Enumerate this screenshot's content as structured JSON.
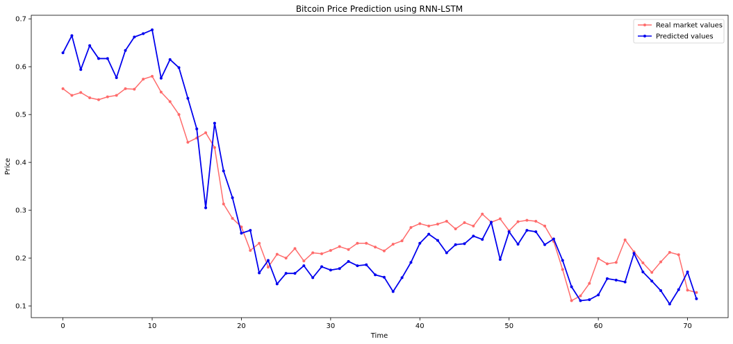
{
  "chart_data": {
    "type": "line",
    "title": "Bitcoin Price Prediction using RNN-LSTM",
    "xlabel": "Time",
    "ylabel": "Price",
    "xlim": [
      -3.55,
      74.55
    ],
    "ylim": [
      0.0755,
      0.7075
    ],
    "xticks": [
      0,
      10,
      20,
      30,
      40,
      50,
      60,
      70
    ],
    "yticks": [
      0.1,
      0.2,
      0.3,
      0.4,
      0.5,
      0.6,
      0.7
    ],
    "grid": false,
    "legend_position": "top-right",
    "x": [
      0,
      1,
      2,
      3,
      4,
      5,
      6,
      7,
      8,
      9,
      10,
      11,
      12,
      13,
      14,
      15,
      16,
      17,
      18,
      19,
      20,
      21,
      22,
      23,
      24,
      25,
      26,
      27,
      28,
      29,
      30,
      31,
      32,
      33,
      34,
      35,
      36,
      37,
      38,
      39,
      40,
      41,
      42,
      43,
      44,
      45,
      46,
      47,
      48,
      49,
      50,
      51,
      52,
      53,
      54,
      55,
      56,
      57,
      58,
      59,
      60,
      61,
      62,
      63,
      64,
      65,
      66,
      67,
      68,
      69,
      70,
      71
    ],
    "series": [
      {
        "name": "Real market values",
        "color": "#ff6b6b",
        "values": [
          0.554,
          0.54,
          0.546,
          0.535,
          0.531,
          0.537,
          0.54,
          0.554,
          0.553,
          0.574,
          0.58,
          0.547,
          0.527,
          0.5,
          0.442,
          0.451,
          0.462,
          0.431,
          0.313,
          0.283,
          0.265,
          0.216,
          0.231,
          0.181,
          0.208,
          0.2,
          0.22,
          0.194,
          0.211,
          0.209,
          0.216,
          0.224,
          0.218,
          0.231,
          0.231,
          0.223,
          0.215,
          0.229,
          0.236,
          0.264,
          0.272,
          0.267,
          0.271,
          0.277,
          0.261,
          0.274,
          0.267,
          0.292,
          0.275,
          0.282,
          0.257,
          0.276,
          0.279,
          0.277,
          0.267,
          0.235,
          0.176,
          0.111,
          0.121,
          0.147,
          0.199,
          0.188,
          0.191,
          0.238,
          0.213,
          0.19,
          0.17,
          0.192,
          0.212,
          0.207,
          0.133,
          0.128
        ]
      },
      {
        "name": "Predicted values",
        "color": "#0000ee",
        "values": [
          0.629,
          0.665,
          0.594,
          0.644,
          0.617,
          0.617,
          0.577,
          0.634,
          0.662,
          0.669,
          0.677,
          0.576,
          0.615,
          0.598,
          0.534,
          0.47,
          0.305,
          0.482,
          0.382,
          0.326,
          0.252,
          0.258,
          0.169,
          0.195,
          0.146,
          0.168,
          0.168,
          0.184,
          0.159,
          0.182,
          0.175,
          0.178,
          0.193,
          0.184,
          0.186,
          0.165,
          0.16,
          0.13,
          0.159,
          0.191,
          0.231,
          0.25,
          0.237,
          0.211,
          0.228,
          0.23,
          0.246,
          0.239,
          0.275,
          0.197,
          0.255,
          0.229,
          0.258,
          0.255,
          0.228,
          0.24,
          0.195,
          0.14,
          0.111,
          0.113,
          0.123,
          0.157,
          0.154,
          0.15,
          0.21,
          0.171,
          0.152,
          0.132,
          0.104,
          0.134,
          0.171,
          0.115
        ]
      }
    ]
  }
}
